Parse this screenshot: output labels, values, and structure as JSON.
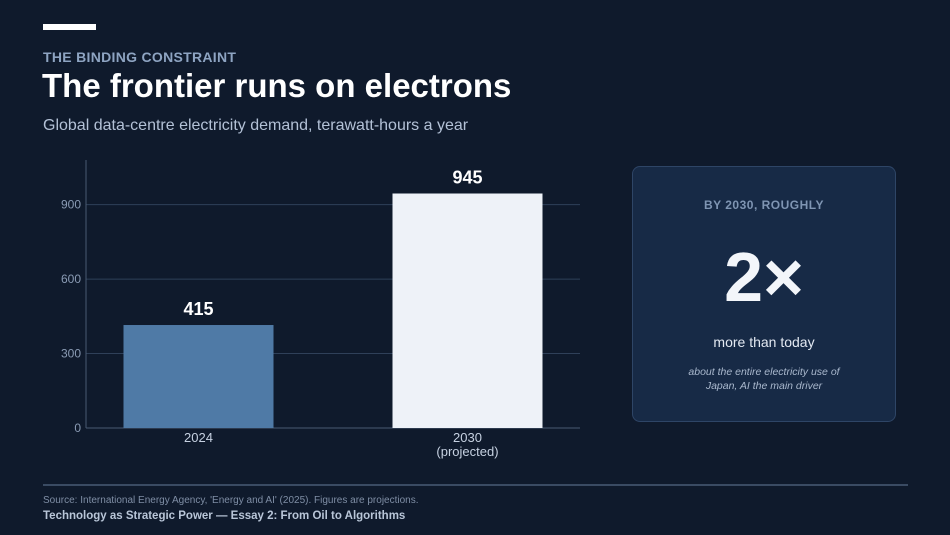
{
  "header": {
    "eyebrow": "THE BINDING CONSTRAINT",
    "title": "The frontier runs on electrons",
    "subtitle": "Global data-centre electricity demand, terawatt-hours a year"
  },
  "chart_data": {
    "type": "bar",
    "title": "",
    "xlabel": "",
    "ylabel": "",
    "categories": [
      {
        "line1": "2024",
        "line2": ""
      },
      {
        "line1": "2030",
        "line2": "(projected)"
      }
    ],
    "values": [
      415,
      945
    ],
    "value_labels": [
      "415",
      "945"
    ],
    "bar_colors": [
      "#4f7aa6",
      "#eef2f8"
    ],
    "yticks": [
      0,
      300,
      600,
      900
    ],
    "ylim": [
      0,
      1080
    ],
    "grid": true,
    "legend": "none"
  },
  "card": {
    "eyebrow": "BY 2030, ROUGHLY",
    "big": "2×",
    "label": "more than today",
    "note": "about the entire electricity use of Japan, AI the main driver"
  },
  "footer": {
    "source": "Source: International Energy Agency, 'Energy and AI' (2025). Figures are projections.",
    "series": "Technology as Strategic Power  —  Essay 2: From Oil to Algorithms"
  },
  "colors": {
    "background": "#0f1a2c",
    "gridline": "#2f4059",
    "axis": "#4a5a72"
  }
}
